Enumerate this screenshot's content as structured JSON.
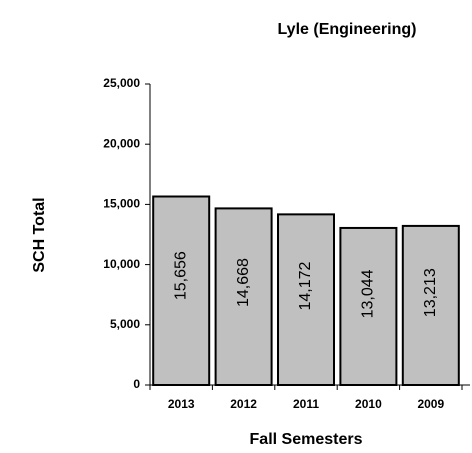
{
  "chart_data": {
    "type": "bar",
    "title": "Lyle (Engineering)",
    "x_label": "Fall Semesters",
    "y_label": "SCH Total",
    "categories": [
      "2013",
      "2012",
      "2011",
      "2010",
      "2009"
    ],
    "values": [
      15656,
      14668,
      14172,
      13044,
      13213
    ],
    "value_labels": [
      "15,656",
      "14,668",
      "14,172",
      "13,044",
      "13,213"
    ],
    "color": "#c0c0c0",
    "ylim": [
      0,
      25000
    ],
    "yticks": [
      0,
      {
        "value": 5000,
        "label": "5,000"
      },
      {
        "value": 10000,
        "label": "10,000"
      },
      {
        "value": 15000,
        "label": "15,000"
      },
      {
        "value": 20000,
        "label": "20,000"
      },
      {
        "value": 25000,
        "label": "25,000"
      }
    ],
    "grid": false
  }
}
